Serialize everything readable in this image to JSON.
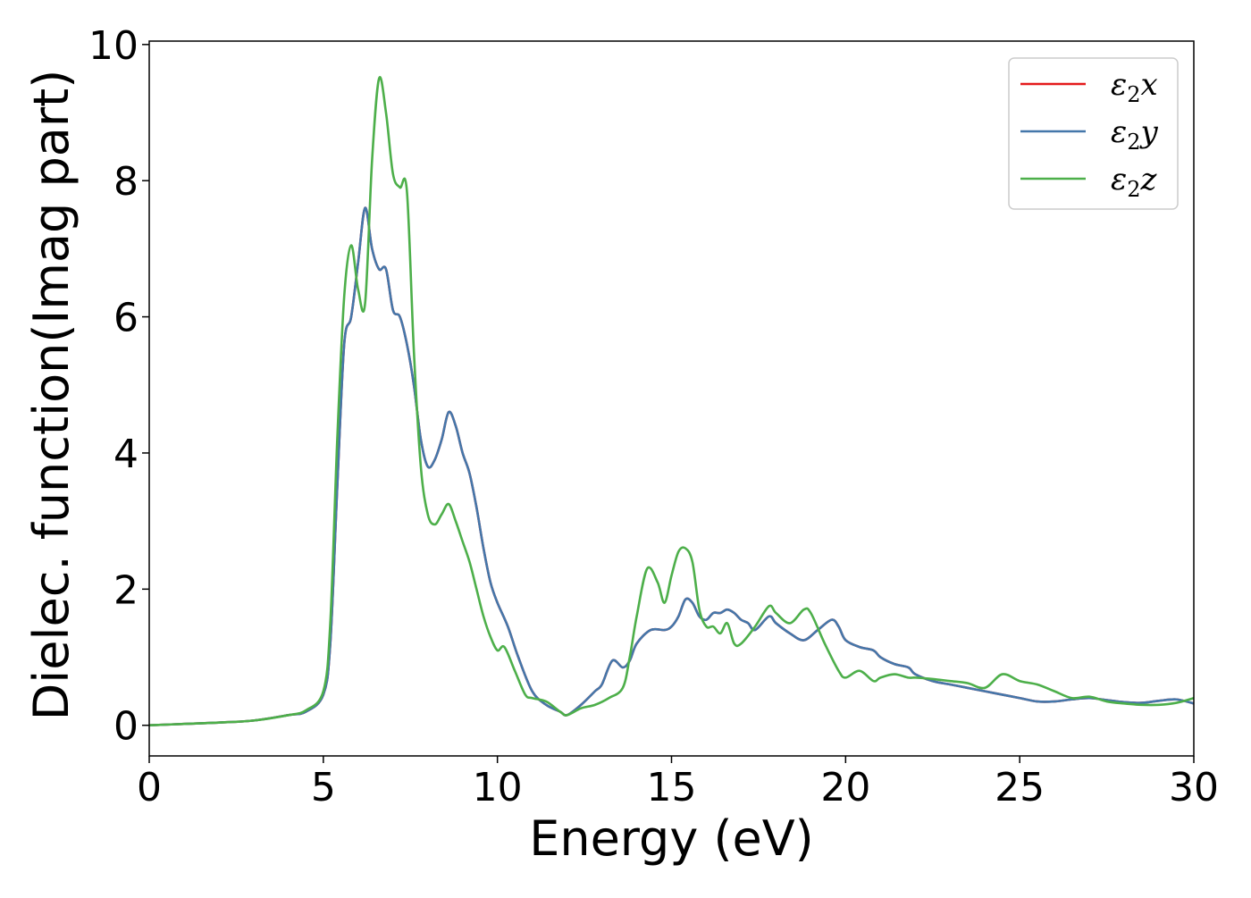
{
  "chart_data": {
    "type": "line",
    "title": "",
    "xlabel": "Energy (eV)",
    "ylabel": "Dielec. function(Imag part)",
    "xlim": [
      0,
      30
    ],
    "ylim": [
      -0.45,
      10.05
    ],
    "xticks": [
      0,
      5,
      10,
      15,
      20,
      25,
      30
    ],
    "yticks": [
      0,
      2,
      4,
      6,
      8,
      10
    ],
    "xtick_labels": [
      "0",
      "5",
      "10",
      "15",
      "20",
      "25",
      "30"
    ],
    "ytick_labels": [
      "0",
      "2",
      "4",
      "6",
      "8",
      "10"
    ],
    "grid": false,
    "legend_position": "top-right",
    "series": [
      {
        "name": "ε₂x",
        "label_base": "ε",
        "label_sub": "2",
        "label_axis": "x",
        "color": "#e41a1c",
        "x": [
          0,
          1,
          2,
          3,
          4,
          4.5,
          5,
          5.2,
          5.4,
          5.6,
          5.8,
          6.0,
          6.2,
          6.4,
          6.6,
          6.8,
          7.0,
          7.2,
          7.4,
          7.6,
          7.8,
          8.0,
          8.2,
          8.4,
          8.6,
          8.8,
          9.0,
          9.2,
          9.4,
          9.6,
          9.8,
          10.0,
          10.3,
          10.6,
          11.0,
          11.4,
          11.8,
          12.0,
          12.4,
          12.8,
          13.0,
          13.3,
          13.6,
          13.8,
          14.0,
          14.4,
          14.8,
          15.0,
          15.2,
          15.4,
          15.6,
          15.8,
          16.0,
          16.2,
          16.4,
          16.6,
          16.8,
          17.0,
          17.2,
          17.4,
          17.8,
          18.0,
          18.4,
          18.8,
          19.2,
          19.6,
          19.8,
          20.0,
          20.4,
          20.8,
          21.0,
          21.4,
          21.8,
          22.0,
          22.5,
          23.0,
          23.5,
          24.0,
          24.5,
          25.0,
          25.5,
          26.0,
          26.5,
          27.0,
          27.5,
          28.0,
          28.5,
          29.0,
          29.5,
          30.0
        ],
        "y": [
          0,
          0.02,
          0.04,
          0.07,
          0.15,
          0.2,
          0.45,
          1.2,
          3.5,
          5.6,
          6.0,
          6.8,
          7.6,
          7.0,
          6.7,
          6.7,
          6.1,
          6.0,
          5.6,
          5.0,
          4.2,
          3.8,
          3.9,
          4.2,
          4.6,
          4.4,
          4.0,
          3.7,
          3.2,
          2.6,
          2.1,
          1.8,
          1.45,
          1.0,
          0.5,
          0.3,
          0.2,
          0.15,
          0.3,
          0.5,
          0.6,
          0.95,
          0.85,
          0.95,
          1.2,
          1.4,
          1.4,
          1.45,
          1.6,
          1.85,
          1.8,
          1.6,
          1.55,
          1.65,
          1.65,
          1.7,
          1.65,
          1.55,
          1.5,
          1.4,
          1.6,
          1.5,
          1.35,
          1.25,
          1.4,
          1.55,
          1.45,
          1.25,
          1.15,
          1.1,
          1.0,
          0.9,
          0.85,
          0.75,
          0.65,
          0.6,
          0.55,
          0.5,
          0.45,
          0.4,
          0.35,
          0.35,
          0.38,
          0.4,
          0.37,
          0.34,
          0.33,
          0.36,
          0.38,
          0.32
        ]
      },
      {
        "name": "ε₂y",
        "label_base": "ε",
        "label_sub": "2",
        "label_axis": "y",
        "color": "#4477aa",
        "x": [
          0,
          1,
          2,
          3,
          4,
          4.5,
          5,
          5.2,
          5.4,
          5.6,
          5.8,
          6.0,
          6.2,
          6.4,
          6.6,
          6.8,
          7.0,
          7.2,
          7.4,
          7.6,
          7.8,
          8.0,
          8.2,
          8.4,
          8.6,
          8.8,
          9.0,
          9.2,
          9.4,
          9.6,
          9.8,
          10.0,
          10.3,
          10.6,
          11.0,
          11.4,
          11.8,
          12.0,
          12.4,
          12.8,
          13.0,
          13.3,
          13.6,
          13.8,
          14.0,
          14.4,
          14.8,
          15.0,
          15.2,
          15.4,
          15.6,
          15.8,
          16.0,
          16.2,
          16.4,
          16.6,
          16.8,
          17.0,
          17.2,
          17.4,
          17.8,
          18.0,
          18.4,
          18.8,
          19.2,
          19.6,
          19.8,
          20.0,
          20.4,
          20.8,
          21.0,
          21.4,
          21.8,
          22.0,
          22.5,
          23.0,
          23.5,
          24.0,
          24.5,
          25.0,
          25.5,
          26.0,
          26.5,
          27.0,
          27.5,
          28.0,
          28.5,
          29.0,
          29.5,
          30.0
        ],
        "y": [
          0,
          0.02,
          0.04,
          0.07,
          0.15,
          0.2,
          0.45,
          1.2,
          3.5,
          5.6,
          6.0,
          6.8,
          7.6,
          7.0,
          6.7,
          6.7,
          6.1,
          6.0,
          5.6,
          5.0,
          4.2,
          3.8,
          3.9,
          4.2,
          4.6,
          4.4,
          4.0,
          3.7,
          3.2,
          2.6,
          2.1,
          1.8,
          1.45,
          1.0,
          0.5,
          0.3,
          0.2,
          0.15,
          0.3,
          0.5,
          0.6,
          0.95,
          0.85,
          0.95,
          1.2,
          1.4,
          1.4,
          1.45,
          1.6,
          1.85,
          1.8,
          1.6,
          1.55,
          1.65,
          1.65,
          1.7,
          1.65,
          1.55,
          1.5,
          1.4,
          1.6,
          1.5,
          1.35,
          1.25,
          1.4,
          1.55,
          1.45,
          1.25,
          1.15,
          1.1,
          1.0,
          0.9,
          0.85,
          0.75,
          0.65,
          0.6,
          0.55,
          0.5,
          0.45,
          0.4,
          0.35,
          0.35,
          0.38,
          0.4,
          0.37,
          0.34,
          0.33,
          0.36,
          0.38,
          0.32
        ]
      },
      {
        "name": "ε₂z",
        "label_base": "ε",
        "label_sub": "2",
        "label_axis": "z",
        "color": "#4daf4a",
        "x": [
          0,
          1,
          2,
          3,
          4,
          4.5,
          5,
          5.2,
          5.4,
          5.6,
          5.8,
          6.0,
          6.2,
          6.4,
          6.6,
          6.8,
          7.0,
          7.2,
          7.4,
          7.6,
          7.8,
          8.0,
          8.2,
          8.4,
          8.6,
          8.8,
          9.0,
          9.2,
          9.4,
          9.6,
          9.8,
          10.0,
          10.2,
          10.5,
          10.8,
          11.0,
          11.4,
          11.8,
          12.0,
          12.4,
          12.8,
          13.2,
          13.6,
          13.8,
          14.0,
          14.3,
          14.6,
          14.8,
          15.0,
          15.2,
          15.4,
          15.6,
          15.8,
          16.0,
          16.2,
          16.4,
          16.6,
          16.8,
          17.0,
          17.4,
          17.8,
          18.0,
          18.4,
          18.8,
          19.0,
          19.4,
          19.8,
          20.0,
          20.4,
          20.8,
          21.0,
          21.4,
          21.8,
          22.0,
          22.5,
          23.0,
          23.5,
          24.0,
          24.5,
          25.0,
          25.5,
          26.0,
          26.5,
          27.0,
          27.5,
          28.0,
          28.5,
          29.0,
          29.5,
          30.0
        ],
        "y": [
          0,
          0.02,
          0.04,
          0.07,
          0.15,
          0.22,
          0.5,
          1.5,
          4.2,
          6.3,
          7.05,
          6.4,
          6.2,
          8.3,
          9.5,
          9.0,
          8.1,
          7.9,
          7.85,
          5.5,
          3.8,
          3.1,
          2.95,
          3.1,
          3.25,
          3.0,
          2.7,
          2.4,
          2.0,
          1.6,
          1.3,
          1.1,
          1.15,
          0.8,
          0.45,
          0.4,
          0.35,
          0.2,
          0.15,
          0.25,
          0.3,
          0.4,
          0.55,
          1.0,
          1.6,
          2.3,
          2.1,
          1.8,
          2.2,
          2.55,
          2.6,
          2.4,
          1.7,
          1.45,
          1.45,
          1.35,
          1.5,
          1.2,
          1.2,
          1.45,
          1.75,
          1.65,
          1.5,
          1.7,
          1.65,
          1.2,
          0.8,
          0.7,
          0.8,
          0.65,
          0.7,
          0.75,
          0.7,
          0.7,
          0.68,
          0.65,
          0.62,
          0.55,
          0.75,
          0.65,
          0.6,
          0.5,
          0.4,
          0.42,
          0.35,
          0.32,
          0.3,
          0.3,
          0.33,
          0.4
        ]
      }
    ]
  }
}
